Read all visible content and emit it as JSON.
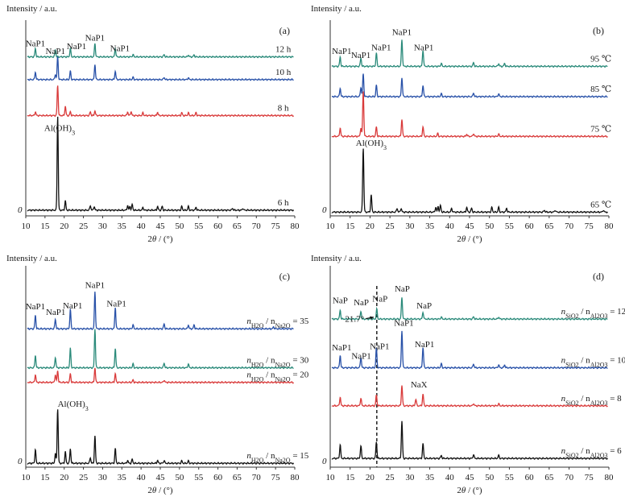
{
  "chart_data": [
    {
      "type": "line",
      "panel_label": "(a)",
      "ylabel": "Intensity / a.u.",
      "xlabel": "2θ / (°)",
      "xlim": [
        10,
        80
      ],
      "xticks": [
        10,
        15,
        20,
        25,
        30,
        35,
        40,
        45,
        50,
        55,
        60,
        65,
        70,
        75,
        80
      ],
      "origin_label": "0",
      "series": [
        {
          "name": "12 h",
          "color": "#2a8a7a",
          "base_frac": 0.84,
          "label_x": 74,
          "peaks": [
            [
              12.5,
              0.045
            ],
            [
              17.7,
              0.038
            ],
            [
              21.6,
              0.045
            ],
            [
              28.0,
              0.07
            ],
            [
              33.3,
              0.045
            ],
            [
              37.9,
              0.012
            ],
            [
              46.0,
              0.012
            ],
            [
              52.3,
              0.01
            ],
            [
              53.8,
              0.01
            ]
          ]
        },
        {
          "name": "10 h",
          "color": "#2851a8",
          "base_frac": 0.72,
          "label_x": 74,
          "peaks": [
            [
              12.5,
              0.04
            ],
            [
              17.7,
              0.028
            ],
            [
              18.3,
              0.12
            ],
            [
              21.6,
              0.045
            ],
            [
              28.0,
              0.08
            ],
            [
              33.3,
              0.045
            ],
            [
              37.9,
              0.012
            ],
            [
              46.0,
              0.012
            ],
            [
              52.3,
              0.01
            ]
          ]
        },
        {
          "name": "8 h",
          "color": "#d93a3a",
          "base_frac": 0.53,
          "label_x": 74,
          "peaks": [
            [
              12.5,
              0.02
            ],
            [
              18.3,
              0.16
            ],
            [
              20.3,
              0.05
            ],
            [
              21.6,
              0.02
            ],
            [
              26.8,
              0.02
            ],
            [
              28.0,
              0.025
            ],
            [
              36.5,
              0.02
            ],
            [
              37.4,
              0.022
            ],
            [
              40.5,
              0.015
            ],
            [
              44.3,
              0.018
            ],
            [
              50.6,
              0.015
            ],
            [
              52.3,
              0.015
            ],
            [
              54.3,
              0.015
            ]
          ]
        },
        {
          "name": "6 h",
          "color": "#111111",
          "base_frac": 0.03,
          "label_x": 74,
          "peaks": [
            [
              18.3,
              0.5
            ],
            [
              20.3,
              0.05
            ],
            [
              26.8,
              0.025
            ],
            [
              27.8,
              0.02
            ],
            [
              36.5,
              0.025
            ],
            [
              37.1,
              0.02
            ],
            [
              37.7,
              0.03
            ],
            [
              40.5,
              0.015
            ],
            [
              44.3,
              0.02
            ],
            [
              45.5,
              0.02
            ],
            [
              50.6,
              0.02
            ],
            [
              52.3,
              0.02
            ],
            [
              54.3,
              0.015
            ],
            [
              63.8,
              0.01
            ],
            [
              66.5,
              0.01
            ]
          ]
        }
      ],
      "annotations": [
        {
          "text": "NaP1",
          "x": 12.5,
          "y_frac": 0.895
        },
        {
          "text": "NaP1",
          "x": 17.7,
          "y_frac": 0.855
        },
        {
          "text": "NaP1",
          "x": 23.2,
          "y_frac": 0.88
        },
        {
          "text": "NaP1",
          "x": 28.0,
          "y_frac": 0.925
        },
        {
          "text": "NaP1",
          "x": 34.5,
          "y_frac": 0.87
        },
        {
          "text": "Al(OH)3",
          "sub": true,
          "x": 18.8,
          "y_frac": 0.45
        }
      ]
    },
    {
      "type": "line",
      "panel_label": "(b)",
      "ylabel": "Intensity / a.u.",
      "xlabel": "2θ / (°)",
      "xlim": [
        10,
        80
      ],
      "xticks": [
        10,
        15,
        20,
        25,
        30,
        35,
        40,
        45,
        50,
        55,
        60,
        65,
        70,
        75,
        80
      ],
      "origin_label": "0",
      "series": [
        {
          "name": "95 ℃",
          "color": "#2a8a7a",
          "base_frac": 0.79,
          "label_x": 75,
          "peaks": [
            [
              12.5,
              0.05
            ],
            [
              17.7,
              0.045
            ],
            [
              21.6,
              0.07
            ],
            [
              28.0,
              0.14
            ],
            [
              33.3,
              0.085
            ],
            [
              37.9,
              0.015
            ],
            [
              46.0,
              0.02
            ],
            [
              52.3,
              0.015
            ],
            [
              53.8,
              0.015
            ]
          ]
        },
        {
          "name": "85 ℃",
          "color": "#2851a8",
          "base_frac": 0.63,
          "label_x": 75,
          "peaks": [
            [
              12.5,
              0.045
            ],
            [
              17.7,
              0.05
            ],
            [
              18.3,
              0.12
            ],
            [
              21.6,
              0.06
            ],
            [
              28.0,
              0.1
            ],
            [
              33.3,
              0.06
            ],
            [
              37.9,
              0.015
            ],
            [
              46.0,
              0.02
            ],
            [
              52.3,
              0.015
            ]
          ]
        },
        {
          "name": "75 ℃",
          "color": "#d93a3a",
          "base_frac": 0.42,
          "label_x": 75,
          "peaks": [
            [
              12.5,
              0.045
            ],
            [
              17.7,
              0.045
            ],
            [
              18.3,
              0.24
            ],
            [
              21.6,
              0.05
            ],
            [
              28.0,
              0.09
            ],
            [
              33.3,
              0.05
            ],
            [
              37.0,
              0.015
            ],
            [
              44.3,
              0.012
            ],
            [
              46.0,
              0.015
            ],
            [
              52.3,
              0.012
            ]
          ]
        },
        {
          "name": "65 ℃",
          "color": "#111111",
          "base_frac": 0.02,
          "label_x": 75,
          "peaks": [
            [
              18.3,
              0.34
            ],
            [
              20.3,
              0.09
            ],
            [
              26.8,
              0.02
            ],
            [
              27.8,
              0.02
            ],
            [
              36.5,
              0.025
            ],
            [
              37.1,
              0.03
            ],
            [
              37.7,
              0.035
            ],
            [
              40.5,
              0.02
            ],
            [
              44.3,
              0.025
            ],
            [
              45.5,
              0.02
            ],
            [
              50.6,
              0.025
            ],
            [
              52.3,
              0.025
            ],
            [
              54.3,
              0.02
            ],
            [
              63.8,
              0.01
            ],
            [
              66.5,
              0.01
            ],
            [
              78.6,
              0.01
            ]
          ]
        }
      ],
      "annotations": [
        {
          "text": "NaP1",
          "x": 12.9,
          "y_frac": 0.855
        },
        {
          "text": "NaP1",
          "x": 17.7,
          "y_frac": 0.835
        },
        {
          "text": "NaP1",
          "x": 22.8,
          "y_frac": 0.875
        },
        {
          "text": "NaP1",
          "x": 28.0,
          "y_frac": 0.955
        },
        {
          "text": "NaP1",
          "x": 33.5,
          "y_frac": 0.875
        },
        {
          "text": "Al(OH)3",
          "sub": true,
          "x": 20.3,
          "y_frac": 0.37
        }
      ]
    },
    {
      "type": "line",
      "panel_label": "(c)",
      "ylabel": "Intensity / a.u.",
      "xlabel": "2θ / (°)",
      "xlim": [
        10,
        80
      ],
      "xticks": [
        10,
        15,
        20,
        25,
        30,
        35,
        40,
        45,
        50,
        55,
        60,
        65,
        70,
        75,
        80
      ],
      "origin_label": "0",
      "series": [
        {
          "name_parts": [
            "n",
            "H2O",
            " / n",
            "Na2O",
            " = 35"
          ],
          "color": "#2851a8",
          "base_frac": 0.71,
          "label_x": 67.5,
          "peaks": [
            [
              12.5,
              0.07
            ],
            [
              17.7,
              0.05
            ],
            [
              21.6,
              0.1
            ],
            [
              28.0,
              0.19
            ],
            [
              33.3,
              0.11
            ],
            [
              37.9,
              0.02
            ],
            [
              46.0,
              0.025
            ],
            [
              52.3,
              0.02
            ],
            [
              53.8,
              0.02
            ],
            [
              74.5,
              0.01
            ]
          ]
        },
        {
          "name_parts": [
            "n",
            "H2O",
            " / n",
            "Na2O",
            " = 30"
          ],
          "color": "#2a8a7a",
          "base_frac": 0.51,
          "label_x": 67.5,
          "peaks": [
            [
              12.5,
              0.065
            ],
            [
              17.7,
              0.055
            ],
            [
              21.6,
              0.1
            ],
            [
              28.0,
              0.2
            ],
            [
              33.3,
              0.1
            ],
            [
              37.9,
              0.02
            ],
            [
              46.0,
              0.025
            ],
            [
              52.3,
              0.02
            ]
          ]
        },
        {
          "name_parts": [
            "n",
            "H2O",
            " / n",
            "Na2O",
            " = 20"
          ],
          "color": "#d93a3a",
          "base_frac": 0.435,
          "label_x": 67.5,
          "peaks": [
            [
              12.5,
              0.04
            ],
            [
              17.7,
              0.04
            ],
            [
              18.3,
              0.06
            ],
            [
              21.6,
              0.045
            ],
            [
              28.0,
              0.075
            ],
            [
              33.3,
              0.045
            ],
            [
              37.9,
              0.012
            ],
            [
              46.0,
              0.012
            ]
          ]
        },
        {
          "name_parts": [
            "n",
            "H2O",
            " / n",
            "Na2O",
            " = 15"
          ],
          "color": "#111111",
          "base_frac": 0.02,
          "label_x": 67.5,
          "peaks": [
            [
              12.5,
              0.07
            ],
            [
              17.7,
              0.05
            ],
            [
              18.3,
              0.28
            ],
            [
              20.3,
              0.06
            ],
            [
              21.6,
              0.075
            ],
            [
              26.8,
              0.03
            ],
            [
              28.0,
              0.14
            ],
            [
              33.3,
              0.075
            ],
            [
              36.5,
              0.015
            ],
            [
              37.7,
              0.02
            ],
            [
              44.3,
              0.015
            ],
            [
              46.0,
              0.015
            ],
            [
              50.6,
              0.012
            ],
            [
              52.3,
              0.012
            ]
          ]
        }
      ],
      "annotations": [
        {
          "text": "NaP1",
          "x": 12.5,
          "y_frac": 0.81
        },
        {
          "text": "NaP1",
          "x": 17.8,
          "y_frac": 0.78
        },
        {
          "text": "NaP1",
          "x": 22.2,
          "y_frac": 0.815
        },
        {
          "text": "NaP1",
          "x": 28.0,
          "y_frac": 0.92
        },
        {
          "text": "NaP1",
          "x": 33.6,
          "y_frac": 0.825
        },
        {
          "text": "Al(OH)3",
          "sub": true,
          "x": 22.3,
          "y_frac": 0.31
        }
      ]
    },
    {
      "type": "line",
      "panel_label": "(d)",
      "ylabel": "Intensity / a.u.",
      "xlabel": "2θ / (°)",
      "xlim": [
        10,
        80
      ],
      "xticks": [
        10,
        15,
        20,
        25,
        30,
        35,
        40,
        45,
        50,
        55,
        60,
        65,
        70,
        75,
        80
      ],
      "origin_label": "0",
      "dashed_x": 21.7,
      "series": [
        {
          "name_parts": [
            "n",
            "SiO2",
            " / n",
            "Al2O3",
            " = 12"
          ],
          "color": "#2a8a7a",
          "base_frac": 0.76,
          "label_x": 68,
          "peaks": [
            [
              12.5,
              0.045
            ],
            [
              17.7,
              0.04
            ],
            [
              21.7,
              0.05
            ],
            [
              28.0,
              0.11
            ],
            [
              33.3,
              0.035
            ],
            [
              37.9,
              0.01
            ],
            [
              46.0,
              0.012
            ],
            [
              52.3,
              0.01
            ]
          ]
        },
        {
          "name_parts": [
            "n",
            "SiO2",
            " / n",
            "Al2O3",
            " = 10"
          ],
          "color": "#2851a8",
          "base_frac": 0.51,
          "label_x": 68,
          "peaks": [
            [
              12.5,
              0.065
            ],
            [
              17.7,
              0.055
            ],
            [
              21.6,
              0.1
            ],
            [
              28.0,
              0.19
            ],
            [
              33.3,
              0.105
            ],
            [
              37.9,
              0.02
            ],
            [
              46.0,
              0.02
            ],
            [
              52.3,
              0.015
            ],
            [
              53.8,
              0.015
            ]
          ]
        },
        {
          "name_parts": [
            "n",
            "SiO2",
            " / n",
            "Al2O3",
            " = 8"
          ],
          "color": "#d93a3a",
          "base_frac": 0.315,
          "label_x": 68,
          "peaks": [
            [
              12.5,
              0.045
            ],
            [
              17.7,
              0.04
            ],
            [
              21.6,
              0.055
            ],
            [
              28.0,
              0.105
            ],
            [
              31.5,
              0.035
            ],
            [
              33.3,
              0.06
            ],
            [
              46.0,
              0.012
            ],
            [
              52.3,
              0.01
            ]
          ]
        },
        {
          "name_parts": [
            "n",
            "SiO2",
            " / n",
            "Al2O3",
            " = 6"
          ],
          "color": "#111111",
          "base_frac": 0.045,
          "label_x": 68,
          "peaks": [
            [
              12.5,
              0.07
            ],
            [
              17.7,
              0.065
            ],
            [
              21.6,
              0.085
            ],
            [
              28.0,
              0.19
            ],
            [
              33.3,
              0.075
            ],
            [
              37.9,
              0.015
            ],
            [
              46.0,
              0.02
            ],
            [
              52.3,
              0.015
            ]
          ]
        }
      ],
      "annotations": [
        {
          "text": "NaP",
          "x": 12.5,
          "y_frac": 0.84
        },
        {
          "text": "NaP",
          "x": 17.8,
          "y_frac": 0.83
        },
        {
          "text": "NaP",
          "x": 22.5,
          "y_frac": 0.85
        },
        {
          "text": "NaP",
          "x": 28.1,
          "y_frac": 0.9
        },
        {
          "text": "NaP",
          "x": 33.6,
          "y_frac": 0.815
        },
        {
          "text": "NaP1",
          "x": 12.9,
          "y_frac": 0.6
        },
        {
          "text": "NaP1",
          "x": 17.8,
          "y_frac": 0.555
        },
        {
          "text": "NaP1",
          "x": 22.4,
          "y_frac": 0.605
        },
        {
          "text": "NaP1",
          "x": 28.5,
          "y_frac": 0.725
        },
        {
          "text": "NaP1",
          "x": 33.7,
          "y_frac": 0.615
        },
        {
          "text": "NaX",
          "x": 32.3,
          "y_frac": 0.41
        },
        {
          "text": "21.7°",
          "x": 16.1,
          "y_frac": 0.745,
          "arrow_to": [
            20.9,
            0.77
          ]
        }
      ]
    }
  ]
}
